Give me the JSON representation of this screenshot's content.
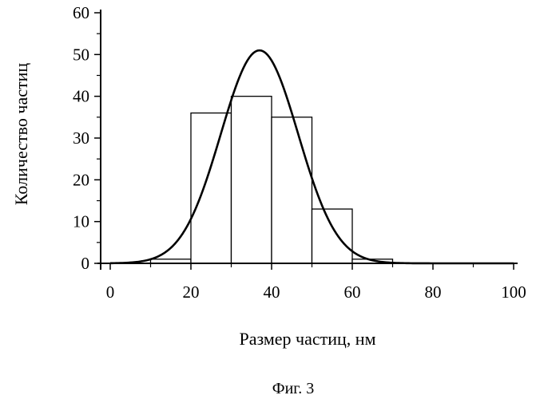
{
  "chart_data": {
    "type": "bar",
    "title": "",
    "xlabel": "Размер частиц, нм",
    "ylabel": "Количество частиц",
    "xlim": [
      0,
      100
    ],
    "ylim": [
      0,
      60
    ],
    "x_ticks": [
      "0",
      "20",
      "40",
      "60",
      "80",
      "100"
    ],
    "y_ticks": [
      "0",
      "10",
      "20",
      "30",
      "40",
      "50",
      "60"
    ],
    "grid": false,
    "legend": "none",
    "bin_width": 10,
    "bins": [
      {
        "from": 10,
        "to": 20,
        "value": 1
      },
      {
        "from": 20,
        "to": 30,
        "value": 36
      },
      {
        "from": 30,
        "to": 40,
        "value": 40
      },
      {
        "from": 40,
        "to": 50,
        "value": 35
      },
      {
        "from": 50,
        "to": 60,
        "value": 13
      },
      {
        "from": 60,
        "to": 70,
        "value": 1
      }
    ],
    "fit_curve": {
      "type": "line",
      "shape": "gaussian",
      "peak_x": 37,
      "peak_y": 51,
      "sigma": 9.6,
      "x_range": [
        0,
        100
      ]
    }
  },
  "caption": "Фиг. 3",
  "colors": {
    "ink": "#000000",
    "bar_fill": "#ffffff"
  }
}
